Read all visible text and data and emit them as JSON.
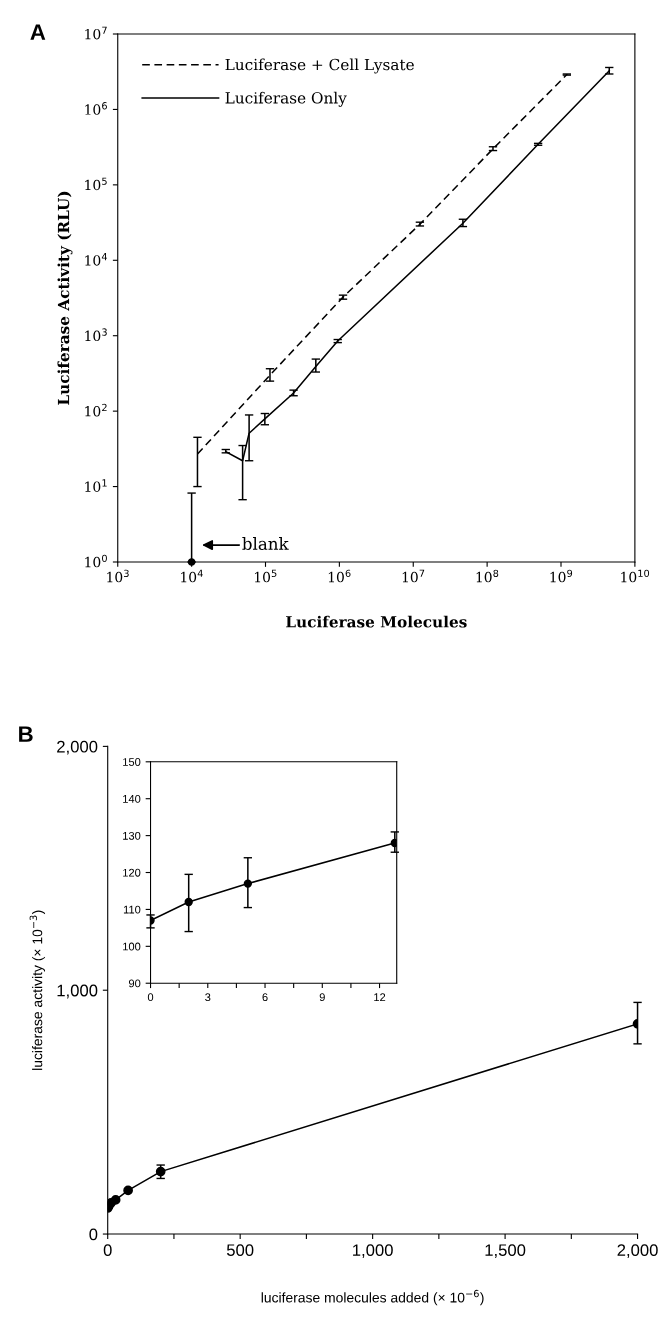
{
  "chart_data": [
    {
      "type": "line",
      "title": "A",
      "xlabel": "Luciferase Molecules",
      "ylabel": "Luciferase Activity (RLU)",
      "log": "xy",
      "grid": false,
      "legend": "top left",
      "marker": "none",
      "xlim": [
        1000,
        10000000000
      ],
      "ylim": [
        1,
        10000000
      ],
      "xticks": [
        {
          "value": 1000,
          "label": "10$^{3}$"
        },
        {
          "value": 10000,
          "label": "10$^{4}$"
        },
        {
          "value": 100000,
          "label": "10$^{5}$"
        },
        {
          "value": 1000000,
          "label": "10$^{6}$"
        },
        {
          "value": 10000000,
          "label": "10$^{7}$"
        },
        {
          "value": 100000000,
          "label": "10$^{8}$"
        },
        {
          "value": 1000000000,
          "label": "10$^{9}$"
        },
        {
          "value": 10000000000,
          "label": "10$^{10}$"
        }
      ],
      "yticks": [
        {
          "value": 1,
          "label": "10$^{0}$"
        },
        {
          "value": 10,
          "label": "10$^{1}$"
        },
        {
          "value": 100,
          "label": "10$^{2}$"
        },
        {
          "value": 1000,
          "label": "10$^{3}$"
        },
        {
          "value": 10000,
          "label": "10$^{4}$"
        },
        {
          "value": 100000,
          "label": "10$^{5}$"
        },
        {
          "value": 1000000,
          "label": "10$^{6}$"
        },
        {
          "value": 10000000,
          "label": "10$^{7}$"
        }
      ],
      "annotations": [
        "blank"
      ],
      "series": [
        {
          "name": "Luciferase + Cell Lysate",
          "color": "#000000",
          "line_style": "dashed",
          "x": [
            12000,
            115000,
            1120000,
            12300000,
            120000000,
            1200000000
          ],
          "values": [
            27,
            300,
            3250,
            30000,
            300000,
            2900000
          ],
          "errors": [
            [
              10,
              45
            ],
            [
              250,
              365
            ],
            [
              3050,
              3450
            ],
            [
              28500,
              32000
            ],
            [
              285000,
              320000
            ],
            [
              2850000,
              2950000
            ]
          ]
        },
        {
          "name": "Luciferase Only",
          "color": "#000000",
          "line_style": "solid",
          "x": [
            29000,
            49000,
            60000,
            98000,
            240000,
            480000,
            950000,
            47000000,
            490000000,
            4500000000
          ],
          "values": [
            29,
            22,
            51,
            79,
            174,
            390,
            850,
            31000,
            345000,
            3250000
          ],
          "errors": [
            [
              28,
              31
            ],
            [
              6.7,
              35
            ],
            [
              22,
              89
            ],
            [
              66,
              93
            ],
            [
              160,
              190
            ],
            [
              330,
              490
            ],
            [
              810,
              890
            ],
            [
              28000,
              35000
            ],
            [
              335000,
              355000
            ],
            [
              2950000,
              3600000
            ]
          ]
        },
        {
          "type": "scatter",
          "color": "#000000",
          "marker": "circle",
          "x": [
            10000
          ],
          "values": [
            1
          ],
          "errors": [
            [
              1,
              8.2
            ]
          ]
        }
      ]
    },
    {
      "type": "line",
      "title": "B",
      "xlabel": "luciferase molecules added (× 10$^{−6}$)",
      "ylabel": "luciferase activity (× 10$^{−3}$)",
      "grid": false,
      "marker": "circle",
      "line_style": "solid",
      "xlim": [
        0,
        2000
      ],
      "ylim": [
        0,
        2000
      ],
      "xticks": [
        0,
        {
          "value": 250,
          "label": null
        },
        500,
        {
          "value": 750,
          "label": null
        },
        {
          "value": 1000,
          "label": "1,000"
        },
        {
          "value": 1250,
          "label": null
        },
        {
          "value": 1500,
          "label": "1,500"
        },
        {
          "value": 1750,
          "label": null
        },
        {
          "value": 2000,
          "label": "2,000"
        }
      ],
      "yticks": [
        0,
        {
          "value": 1000,
          "label": "1,000"
        },
        {
          "value": 2000,
          "label": "2,000"
        }
      ],
      "series": [
        {
          "color": "#000000",
          "x": [
            0,
            2,
            5.1,
            12.8,
            30,
            77,
            200,
            2000
          ],
          "values": [
            107,
            112,
            117,
            128,
            140,
            179,
            256,
            862
          ],
          "errors": [
            null,
            null,
            null,
            null,
            null,
            null,
            [
              228,
              283
            ],
            [
              780,
              950
            ]
          ]
        }
      ]
    },
    {
      "type": "line",
      "grid": false,
      "marker": "circle",
      "line_style": "solid",
      "xlim": [
        0,
        12.9
      ],
      "ylim": [
        90,
        150
      ],
      "xticks": [
        0,
        {
          "value": 1.5,
          "label": null
        },
        3,
        {
          "value": 4.5,
          "label": null
        },
        6,
        {
          "value": 7.5,
          "label": null
        },
        9,
        {
          "value": 10.5,
          "label": null
        },
        12
      ],
      "yticks": [
        90,
        100,
        110,
        120,
        130,
        140,
        150
      ],
      "series": [
        {
          "color": "#000000",
          "x": [
            0,
            2,
            5.1,
            12.8
          ],
          "values": [
            107,
            112,
            117,
            128
          ],
          "errors": [
            [
              105,
              108.5
            ],
            [
              104,
              119.5
            ],
            [
              110.5,
              124
            ],
            [
              125.5,
              131
            ]
          ]
        }
      ]
    }
  ]
}
